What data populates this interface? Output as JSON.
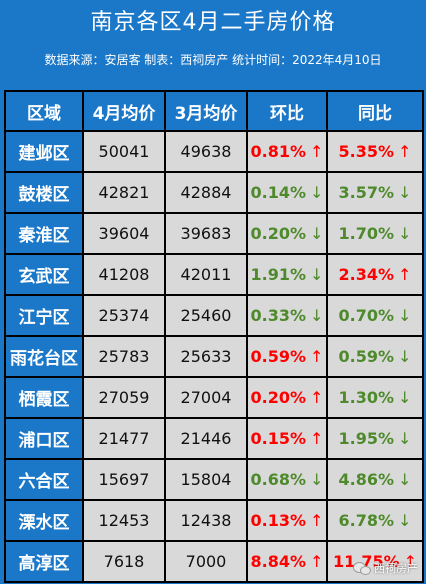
{
  "title": "南京各区4月二手房价格",
  "subtitle": "数据来源：安居客 制表：西祠房产 统计时间：2022年4月10日",
  "headers": [
    "区域",
    "4月均价",
    "3月均价",
    "环比",
    "同比"
  ],
  "arrows": {
    "up": "↑",
    "down": "↓"
  },
  "colors": {
    "header_bg": "#1b78c9",
    "cell_bg": "#d9d9d9",
    "up": "#ff0000",
    "down": "#4e8a2c"
  },
  "rows": [
    {
      "district": "建邺区",
      "apr": "50041",
      "mar": "49638",
      "mom": "0.81%",
      "mom_dir": "up",
      "yoy": "5.35%",
      "yoy_dir": "up"
    },
    {
      "district": "鼓楼区",
      "apr": "42821",
      "mar": "42884",
      "mom": "0.14%",
      "mom_dir": "down",
      "yoy": "3.57%",
      "yoy_dir": "down"
    },
    {
      "district": "秦淮区",
      "apr": "39604",
      "mar": "39683",
      "mom": "0.20%",
      "mom_dir": "down",
      "yoy": "1.70%",
      "yoy_dir": "down"
    },
    {
      "district": "玄武区",
      "apr": "41208",
      "mar": "42011",
      "mom": "1.91%",
      "mom_dir": "down",
      "yoy": "2.34%",
      "yoy_dir": "up"
    },
    {
      "district": "江宁区",
      "apr": "25374",
      "mar": "25460",
      "mom": "0.33%",
      "mom_dir": "down",
      "yoy": "0.70%",
      "yoy_dir": "down"
    },
    {
      "district": "雨花台区",
      "apr": "25783",
      "mar": "25633",
      "mom": "0.59%",
      "mom_dir": "up",
      "yoy": "0.59%",
      "yoy_dir": "down"
    },
    {
      "district": "栖霞区",
      "apr": "27059",
      "mar": "27004",
      "mom": "0.20%",
      "mom_dir": "up",
      "yoy": "1.30%",
      "yoy_dir": "down"
    },
    {
      "district": "浦口区",
      "apr": "21477",
      "mar": "21446",
      "mom": "0.15%",
      "mom_dir": "up",
      "yoy": "1.95%",
      "yoy_dir": "down"
    },
    {
      "district": "六合区",
      "apr": "15697",
      "mar": "15804",
      "mom": "0.68%",
      "mom_dir": "down",
      "yoy": "4.86%",
      "yoy_dir": "down"
    },
    {
      "district": "溧水区",
      "apr": "12453",
      "mar": "12438",
      "mom": "0.13%",
      "mom_dir": "up",
      "yoy": "6.78%",
      "yoy_dir": "down"
    },
    {
      "district": "高淳区",
      "apr": "7618",
      "mar": "7000",
      "mom": "8.84%",
      "mom_dir": "up",
      "yoy": "11.75%",
      "yoy_dir": "up"
    }
  ],
  "watermark": {
    "text": "西祠房产",
    "icon": "wechat-icon"
  }
}
